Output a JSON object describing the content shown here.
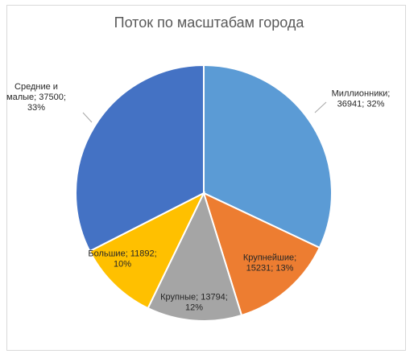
{
  "chart_data": {
    "type": "pie",
    "title": "Поток по масштабам города",
    "categories": [
      "Миллионники",
      "Крупнейшие",
      "Крупные",
      "Большие",
      "Средние и малые"
    ],
    "values": [
      36941,
      15231,
      13794,
      11892,
      37500
    ],
    "percents": [
      "32%",
      "13%",
      "12%",
      "10%",
      "33%"
    ],
    "colors": [
      "#5b9bd5",
      "#ed7d31",
      "#a5a5a5",
      "#ffc000",
      "#4472c4"
    ],
    "labels": [
      [
        "Миллионники;",
        "36941; 32%"
      ],
      [
        "Крупнейшие;",
        "15231; 13%"
      ],
      [
        "Крупные; 13794;",
        "12%"
      ],
      [
        "Большие; 11892;",
        "10%"
      ],
      [
        "Средние и",
        "малые; 37500;",
        "33%"
      ]
    ],
    "start_angle_deg": 0,
    "direction": "clockwise",
    "legend": "none",
    "data_labels": "category; value; percent"
  }
}
